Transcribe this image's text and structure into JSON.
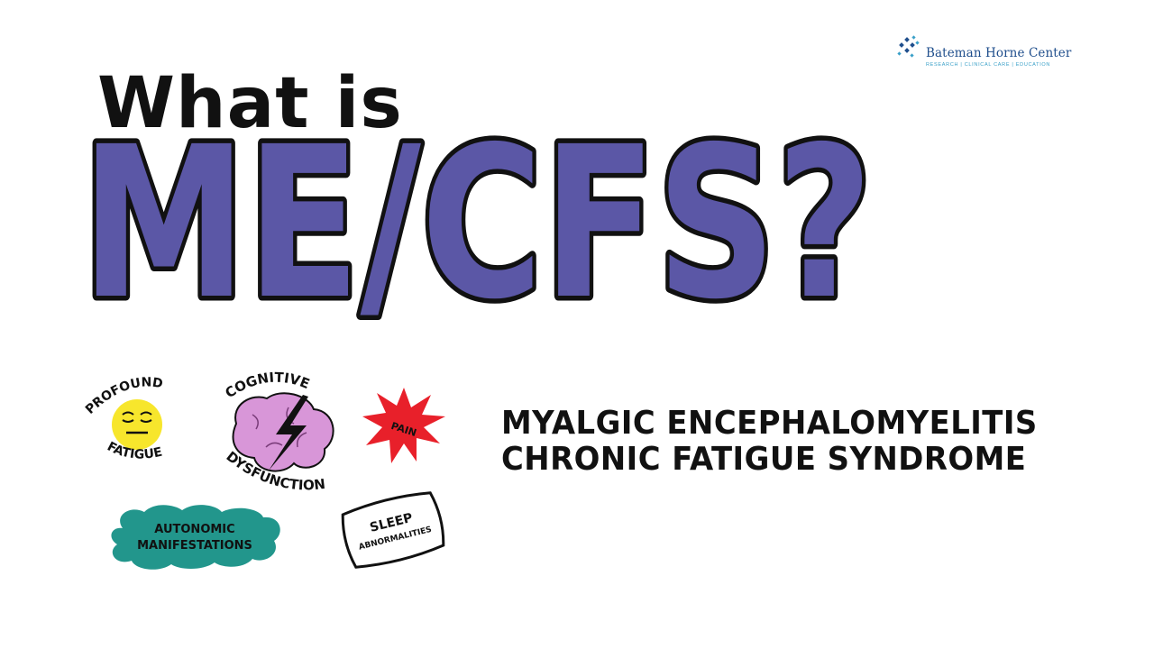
{
  "logo": {
    "name": "Bateman Horne Center",
    "tagline": "RESEARCH | CLINICAL CARE | EDUCATION",
    "icon": "star-burst-icon"
  },
  "headline": {
    "line1": "What is",
    "line2": "ME/CFS?"
  },
  "full_name": {
    "line1": "MYALGIC ENCEPHALOMYELITIS",
    "line2": "CHRONIC FATIGUE SYNDROME"
  },
  "symptoms": {
    "profound_fatigue": {
      "top": "PROFOUND",
      "bottom": "FATIGUE",
      "icon": "tired-face-icon"
    },
    "cognitive_dysfunction": {
      "top": "COGNITIVE",
      "bottom": "DYSFUNCTION",
      "icon": "brain-lightning-icon"
    },
    "pain": {
      "label": "PAIN",
      "icon": "starburst-icon"
    },
    "autonomic": {
      "line1": "AUTONOMIC",
      "line2": "MANIFESTATIONS",
      "icon": "cloud-icon"
    },
    "sleep": {
      "line1": "SLEEP",
      "line2": "ABNORMALITIES",
      "icon": "pillow-icon"
    }
  },
  "colors": {
    "title_fill": "#5b57a6",
    "outline": "#111111",
    "fatigue_face": "#f7e62c",
    "brain": "#d896d8",
    "pain": "#e8202a",
    "cloud": "#22968c",
    "logo_blue": "#1f4e8c",
    "logo_light": "#3aa0c8"
  }
}
